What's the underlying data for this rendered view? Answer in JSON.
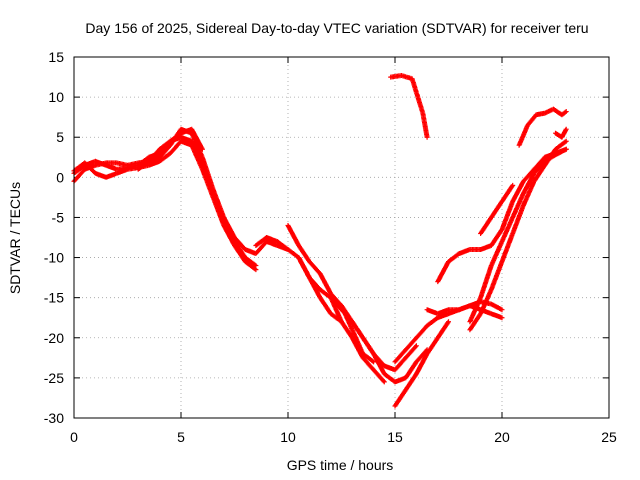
{
  "chart_data": {
    "type": "scatter",
    "title": "Day 156 of 2025, Sidereal Day-to-day VTEC variation (SDTVAR) for receiver teru",
    "xlabel": "GPS time / hours",
    "ylabel": "SDTVAR / TECUs",
    "xlim": [
      0,
      25
    ],
    "ylim": [
      -30,
      15
    ],
    "x_ticks": [
      "0",
      "5",
      "10",
      "15",
      "20",
      "25"
    ],
    "y_ticks": [
      "15",
      "10",
      "5",
      "0",
      "-5",
      "-10",
      "-15",
      "-20",
      "-25",
      "-30"
    ],
    "grid": true,
    "legend": "none",
    "marker": "plus",
    "color": "#ff0000",
    "series": [
      {
        "x": [
          0,
          0.5,
          1,
          1.5,
          2,
          2.5,
          3,
          3.5,
          4,
          4.5,
          5,
          5.5,
          6,
          6.5,
          7,
          7.5,
          8,
          8.5,
          9,
          9.5,
          10
        ],
        "y": [
          -0.5,
          1.0,
          1.5,
          1.8,
          1.8,
          1.5,
          1.8,
          2.0,
          2.5,
          4.0,
          6.0,
          5.5,
          2.5,
          -1.5,
          -5.0,
          -7.5,
          -9.0,
          -9.5,
          -8.0,
          -8.5,
          -9.0
        ]
      },
      {
        "x": [
          0,
          0.5,
          1,
          1.5,
          2,
          2.5,
          3,
          3.5,
          4,
          4.5,
          5,
          5.5,
          6,
          6.5,
          7,
          7.5,
          8,
          8.5
        ],
        "y": [
          0.5,
          1.5,
          2.0,
          1.5,
          1.0,
          1.2,
          1.5,
          2.5,
          3.0,
          4.5,
          5.0,
          4.5,
          2.0,
          -2.0,
          -5.5,
          -8.0,
          -10.0,
          -11.0
        ]
      },
      {
        "x": [
          0,
          0.5,
          1,
          1.5,
          2,
          2.5,
          3,
          3.5,
          4,
          4.5,
          5,
          5.5,
          6,
          6.5,
          7,
          7.5,
          8,
          8.5
        ],
        "y": [
          0.8,
          1.8,
          0.5,
          0.0,
          0.5,
          1.0,
          1.2,
          1.5,
          2.0,
          3.0,
          4.5,
          4.0,
          1.0,
          -2.5,
          -6.0,
          -8.5,
          -10.5,
          -11.5
        ]
      },
      {
        "x": [
          3.0,
          3.5,
          4.0,
          4.5,
          5.0,
          5.5,
          6.0
        ],
        "y": [
          1.0,
          2.0,
          3.5,
          4.5,
          5.5,
          6.0,
          3.5
        ]
      },
      {
        "x": [
          8.5,
          9.0,
          9.5,
          10.0,
          10.5,
          11.0,
          11.5,
          12.0,
          12.5,
          13.0,
          13.5,
          14.0,
          14.5,
          15.0,
          15.5,
          16.0
        ],
        "y": [
          -8.5,
          -7.5,
          -8.0,
          -9.0,
          -10.0,
          -12.5,
          -14.0,
          -15.0,
          -16.5,
          -18.0,
          -20.0,
          -22.0,
          -23.5,
          -24.0,
          -22.5,
          -21.0
        ]
      },
      {
        "x": [
          10.0,
          10.5,
          11.0,
          11.5,
          12.0,
          12.5,
          13.0,
          13.5,
          14.0,
          14.5,
          15.0,
          15.5,
          16.0,
          16.5
        ],
        "y": [
          -6.0,
          -8.5,
          -10.5,
          -12.0,
          -14.5,
          -16.0,
          -18.0,
          -20.0,
          -22.0,
          -24.5,
          -25.5,
          -25.0,
          -23.0,
          -21.5
        ]
      },
      {
        "x": [
          10.5,
          11.0,
          11.5,
          12.0,
          12.5
        ],
        "y": [
          -10.0,
          -12.5,
          -15.0,
          -17.0,
          -18.0
        ]
      },
      {
        "x": [
          12.0,
          12.5,
          13.0,
          13.5,
          14.0,
          14.5
        ],
        "y": [
          -15.0,
          -18.0,
          -20.0,
          -22.5,
          -24.0,
          -25.5
        ]
      },
      {
        "x": [
          12.5,
          13.0,
          13.5,
          14.0
        ],
        "y": [
          -16.0,
          -19.0,
          -22.0,
          -23.0
        ]
      },
      {
        "x": [
          15.0,
          15.5,
          16.0,
          16.5,
          17.0,
          17.5
        ],
        "y": [
          -28.5,
          -26.5,
          -24.5,
          -22.0,
          -20.0,
          -18.0
        ]
      },
      {
        "x": [
          14.8,
          15.3,
          15.8,
          16.3,
          16.5
        ],
        "y": [
          12.5,
          12.7,
          12.3,
          8.0,
          5.0
        ]
      },
      {
        "x": [
          15.0,
          15.5,
          16.0,
          16.5,
          17.0,
          17.5,
          18.0,
          18.5,
          19.0,
          19.5,
          20.0
        ],
        "y": [
          -23.0,
          -21.5,
          -20.0,
          -18.5,
          -17.5,
          -17.0,
          -16.5,
          -16.0,
          -15.5,
          -15.8,
          -16.5
        ]
      },
      {
        "x": [
          16.5,
          17.0,
          17.5,
          18.0,
          18.5,
          19.0,
          19.5,
          20.0
        ],
        "y": [
          -16.5,
          -17.0,
          -16.5,
          -16.5,
          -16.0,
          -16.5,
          -17.0,
          -17.5
        ]
      },
      {
        "x": [
          17.0,
          17.5,
          18.0,
          18.5,
          19.0,
          19.5,
          20.0,
          20.5,
          21.0,
          21.5,
          22.0,
          22.5,
          23.0
        ],
        "y": [
          -13.0,
          -10.5,
          -9.5,
          -9.0,
          -9.0,
          -8.5,
          -6.5,
          -3.0,
          -0.5,
          1.0,
          2.5,
          3.0,
          3.5
        ]
      },
      {
        "x": [
          18.5,
          19.0,
          19.5,
          20.0,
          20.5,
          21.0,
          21.5,
          22.0,
          22.5,
          23.0
        ],
        "y": [
          -18.0,
          -15.0,
          -11.0,
          -8.0,
          -5.0,
          -2.0,
          0.5,
          2.0,
          2.8,
          3.5
        ]
      },
      {
        "x": [
          18.5,
          19.0,
          19.5,
          20.0,
          20.5,
          21.0,
          21.5,
          22.0,
          22.5,
          23.0
        ],
        "y": [
          -19.0,
          -17.0,
          -14.0,
          -10.5,
          -7.0,
          -3.5,
          -0.5,
          1.5,
          3.5,
          4.5
        ]
      },
      {
        "x": [
          19.0,
          19.5,
          20.0,
          20.5
        ],
        "y": [
          -7.0,
          -5.0,
          -3.0,
          -1.0
        ]
      },
      {
        "x": [
          20.8,
          21.2,
          21.6,
          22.0,
          22.4,
          22.8,
          23.0
        ],
        "y": [
          4.0,
          6.5,
          7.8,
          8.0,
          8.5,
          7.8,
          8.2
        ]
      },
      {
        "x": [
          22.5,
          22.8,
          23.0
        ],
        "y": [
          5.5,
          5.0,
          6.0
        ]
      }
    ]
  }
}
